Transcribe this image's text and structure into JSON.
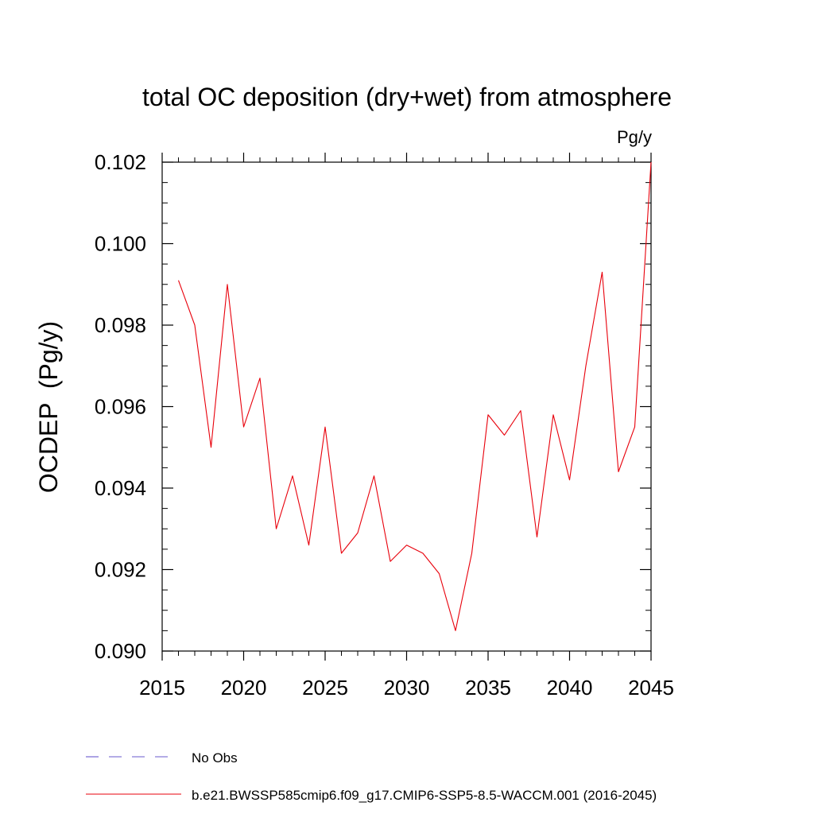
{
  "chart_data": {
    "type": "line",
    "title": "total OC deposition (dry+wet) from atmosphere",
    "units_label": "Pg/y",
    "ylabel": "OCDEP  (Pg/y)",
    "xlabel": "",
    "xlim": [
      2015,
      2045
    ],
    "ylim": [
      0.09,
      0.102
    ],
    "x_ticks": [
      2015,
      2020,
      2025,
      2030,
      2035,
      2040,
      2045
    ],
    "x_tick_labels": [
      "2015",
      "2020",
      "2025",
      "2030",
      "2035",
      "2040",
      "2045"
    ],
    "y_ticks": [
      0.09,
      0.092,
      0.094,
      0.096,
      0.098,
      0.1,
      0.102
    ],
    "y_tick_labels": [
      "0.090",
      "0.092",
      "0.094",
      "0.096",
      "0.098",
      "0.100",
      "0.102"
    ],
    "grid": false,
    "legend_position": "bottom",
    "series": [
      {
        "name": "b.e21.BWSSP585cmip6.f09_g17.CMIP6-SSP5-8.5-WACCM.001 (2016-2045)",
        "color": "#e8000b",
        "style": "solid",
        "x": [
          2016,
          2017,
          2018,
          2019,
          2020,
          2021,
          2022,
          2023,
          2024,
          2025,
          2026,
          2027,
          2028,
          2029,
          2030,
          2031,
          2032,
          2033,
          2034,
          2035,
          2036,
          2037,
          2038,
          2039,
          2040,
          2041,
          2042,
          2043,
          2044,
          2045
        ],
        "y": [
          0.0991,
          0.098,
          0.095,
          0.099,
          0.0955,
          0.0967,
          0.093,
          0.0943,
          0.0926,
          0.0955,
          0.0924,
          0.0929,
          0.0943,
          0.0922,
          0.0926,
          0.0924,
          0.0919,
          0.0905,
          0.0924,
          0.0958,
          0.0953,
          0.0959,
          0.0928,
          0.0958,
          0.0942,
          0.097,
          0.0993,
          0.0944,
          0.0955,
          0.102
        ]
      }
    ],
    "legend": [
      {
        "label": "No Obs",
        "color": "#6a5acd",
        "style": "dashed"
      },
      {
        "label": "b.e21.BWSSP585cmip6.f09_g17.CMIP6-SSP5-8.5-WACCM.001 (2016-2045)",
        "color": "#e8000b",
        "style": "solid"
      }
    ]
  }
}
